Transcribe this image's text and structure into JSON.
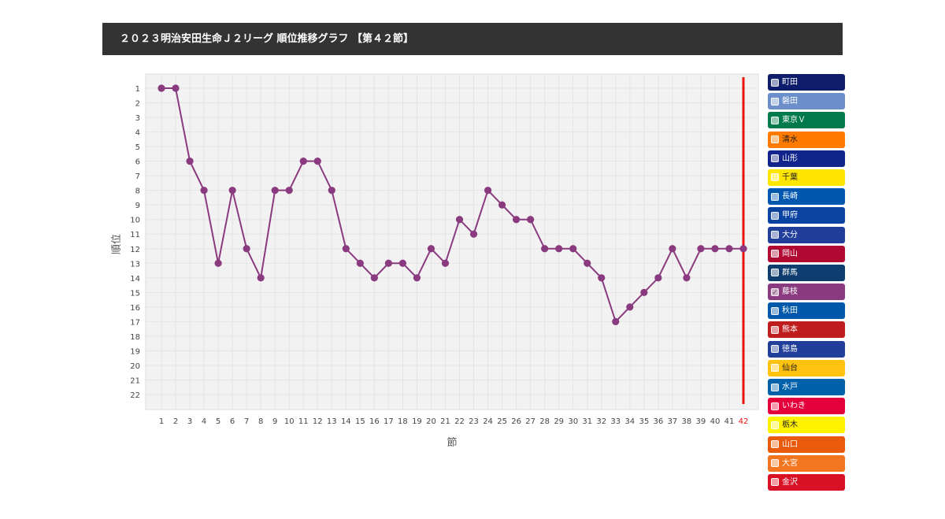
{
  "title": "２０２３明治安田生命Ｊ２リーグ 順位推移グラフ 【第４２節】",
  "chart_data": {
    "type": "line",
    "xlabel": "節",
    "ylabel": "順位",
    "x": [
      1,
      2,
      3,
      4,
      5,
      6,
      7,
      8,
      9,
      10,
      11,
      12,
      13,
      14,
      15,
      16,
      17,
      18,
      19,
      20,
      21,
      22,
      23,
      24,
      25,
      26,
      27,
      28,
      29,
      30,
      31,
      32,
      33,
      34,
      35,
      36,
      37,
      38,
      39,
      40,
      41,
      42
    ],
    "ylim": [
      1,
      22
    ],
    "y_reversed": true,
    "current_round": 42,
    "grid": true,
    "series": [
      {
        "name": "藤枝",
        "color": "#8a3a7e",
        "values": [
          1,
          1,
          6,
          8,
          13,
          8,
          12,
          14,
          8,
          8,
          6,
          6,
          8,
          12,
          13,
          14,
          13,
          13,
          14,
          12,
          13,
          10,
          11,
          8,
          9,
          10,
          10,
          12,
          12,
          12,
          13,
          14,
          17,
          16,
          15,
          14,
          12,
          14,
          12,
          12,
          12,
          12
        ]
      }
    ]
  },
  "legend": [
    {
      "label": "町田",
      "color": "#0e1d6b",
      "text": "#ffffff",
      "checked": false
    },
    {
      "label": "磐田",
      "color": "#6c8ec9",
      "text": "#ffffff",
      "checked": false
    },
    {
      "label": "東京Ｖ",
      "color": "#007a4d",
      "text": "#ffffff",
      "checked": false
    },
    {
      "label": "清水",
      "color": "#ff7b00",
      "text": "#222222",
      "checked": false
    },
    {
      "label": "山形",
      "color": "#10248c",
      "text": "#ffffff",
      "checked": false
    },
    {
      "label": "千葉",
      "color": "#ffe600",
      "text": "#222222",
      "checked": false
    },
    {
      "label": "長崎",
      "color": "#0057b0",
      "text": "#ffffff",
      "checked": false
    },
    {
      "label": "甲府",
      "color": "#0a43a0",
      "text": "#ffffff",
      "checked": false
    },
    {
      "label": "大分",
      "color": "#213f9a",
      "text": "#ffffff",
      "checked": false
    },
    {
      "label": "岡山",
      "color": "#b00a33",
      "text": "#ffffff",
      "checked": false
    },
    {
      "label": "群馬",
      "color": "#0d3d6e",
      "text": "#ffffff",
      "checked": false
    },
    {
      "label": "藤枝",
      "color": "#8a3a7e",
      "text": "#ffffff",
      "checked": true
    },
    {
      "label": "秋田",
      "color": "#0058aa",
      "text": "#ffffff",
      "checked": false
    },
    {
      "label": "熊本",
      "color": "#bf1d1d",
      "text": "#ffffff",
      "checked": false
    },
    {
      "label": "徳島",
      "color": "#213f9a",
      "text": "#ffffff",
      "checked": false
    },
    {
      "label": "仙台",
      "color": "#ffc20e",
      "text": "#222222",
      "checked": false
    },
    {
      "label": "水戸",
      "color": "#0061ab",
      "text": "#ffffff",
      "checked": false
    },
    {
      "label": "いわき",
      "color": "#e4003a",
      "text": "#ffffff",
      "checked": false
    },
    {
      "label": "栃木",
      "color": "#fff200",
      "text": "#222222",
      "checked": false
    },
    {
      "label": "山口",
      "color": "#ea5a0c",
      "text": "#ffffff",
      "checked": false
    },
    {
      "label": "大宮",
      "color": "#f4751f",
      "text": "#ffffff",
      "checked": false
    },
    {
      "label": "金沢",
      "color": "#d91125",
      "text": "#ffffff",
      "checked": false
    }
  ]
}
